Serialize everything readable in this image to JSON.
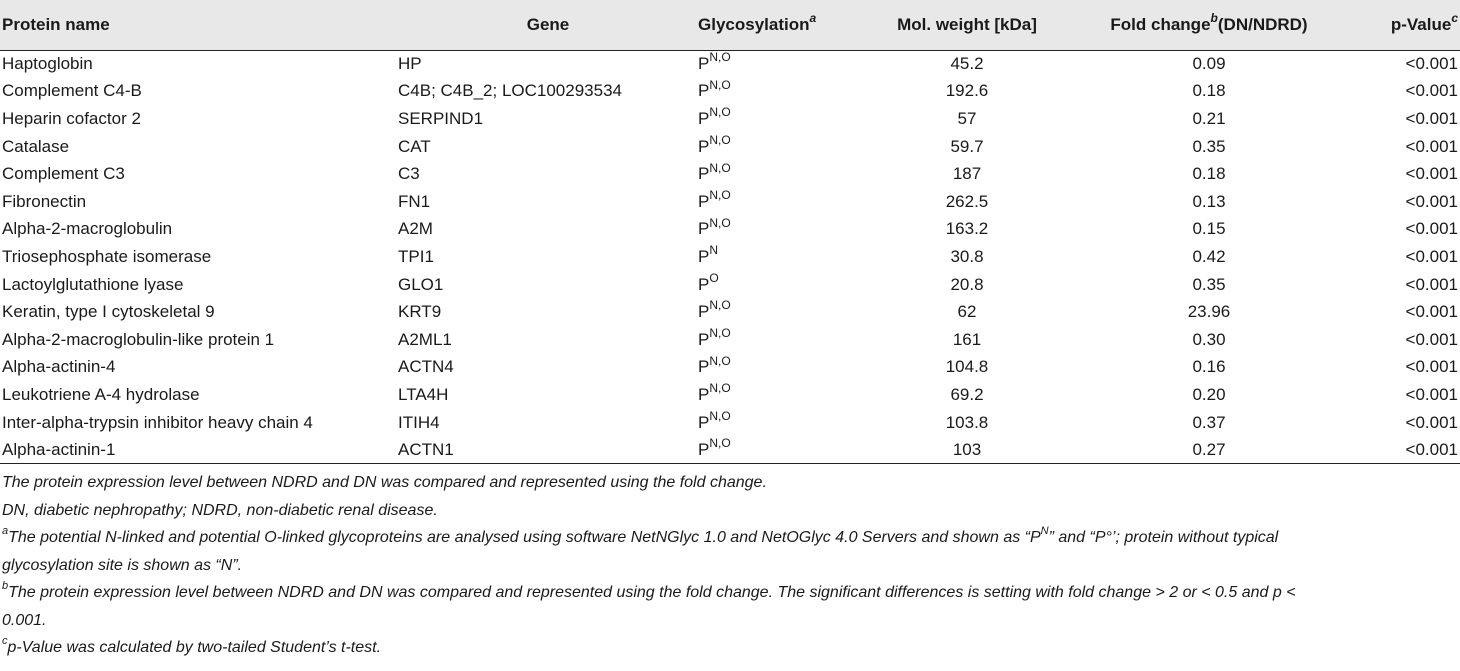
{
  "table": {
    "headers": {
      "protein": "Protein name",
      "gene": "Gene",
      "glyco": "Glycosylation",
      "glyco_sup": "a",
      "mw": "Mol. weight [kDa]",
      "fold_pre": "Fold change",
      "fold_sup": "b",
      "fold_post": "(DN/NDRD)",
      "p": "p-Value",
      "p_sup": "c"
    },
    "rows": [
      {
        "protein": "Haptoglobin",
        "gene": "HP",
        "glyco_base": "P",
        "glyco_sup": "N,O",
        "mw": "45.2",
        "fold": "0.09",
        "p": "<0.001"
      },
      {
        "protein": "Complement C4-B",
        "gene": "C4B; C4B_2; LOC100293534",
        "glyco_base": "P",
        "glyco_sup": "N,O",
        "mw": "192.6",
        "fold": "0.18",
        "p": "<0.001"
      },
      {
        "protein": "Heparin cofactor 2",
        "gene": "SERPIND1",
        "glyco_base": "P",
        "glyco_sup": "N,O",
        "mw": "57",
        "fold": "0.21",
        "p": "<0.001"
      },
      {
        "protein": "Catalase",
        "gene": "CAT",
        "glyco_base": "P",
        "glyco_sup": "N,O",
        "mw": "59.7",
        "fold": "0.35",
        "p": "<0.001"
      },
      {
        "protein": "Complement C3",
        "gene": "C3",
        "glyco_base": "P",
        "glyco_sup": "N,O",
        "mw": "187",
        "fold": "0.18",
        "p": "<0.001"
      },
      {
        "protein": "Fibronectin",
        "gene": "FN1",
        "glyco_base": "P",
        "glyco_sup": "N,O",
        "mw": "262.5",
        "fold": "0.13",
        "p": "<0.001"
      },
      {
        "protein": "Alpha-2-macroglobulin",
        "gene": "A2M",
        "glyco_base": "P",
        "glyco_sup": "N,O",
        "mw": "163.2",
        "fold": "0.15",
        "p": "<0.001"
      },
      {
        "protein": "Triosephosphate isomerase",
        "gene": "TPI1",
        "glyco_base": "P",
        "glyco_sup": "N",
        "mw": "30.8",
        "fold": "0.42",
        "p": "<0.001"
      },
      {
        "protein": "Lactoylglutathione lyase",
        "gene": "GLO1",
        "glyco_base": "P",
        "glyco_sup": "O",
        "mw": "20.8",
        "fold": "0.35",
        "p": "<0.001"
      },
      {
        "protein": "Keratin, type I cytoskeletal 9",
        "gene": "KRT9",
        "glyco_base": "P",
        "glyco_sup": "N,O",
        "mw": "62",
        "fold": "23.96",
        "p": "<0.001"
      },
      {
        "protein": "Alpha-2-macroglobulin-like protein 1",
        "gene": "A2ML1",
        "glyco_base": "P",
        "glyco_sup": "N,O",
        "mw": "161",
        "fold": "0.30",
        "p": "<0.001"
      },
      {
        "protein": "Alpha-actinin-4",
        "gene": "ACTN4",
        "glyco_base": "P",
        "glyco_sup": "N,O",
        "mw": "104.8",
        "fold": "0.16",
        "p": "<0.001"
      },
      {
        "protein": "Leukotriene A-4 hydrolase",
        "gene": "LTA4H",
        "glyco_base": "P",
        "glyco_sup": "N,O",
        "mw": "69.2",
        "fold": "0.20",
        "p": "<0.001"
      },
      {
        "protein": "Inter-alpha-trypsin inhibitor heavy chain 4",
        "gene": "ITIH4",
        "glyco_base": "P",
        "glyco_sup": "N,O",
        "mw": "103.8",
        "fold": "0.37",
        "p": "<0.001"
      },
      {
        "protein": "Alpha-actinin-1",
        "gene": "ACTN1",
        "glyco_base": "P",
        "glyco_sup": "N,O",
        "mw": "103",
        "fold": "0.27",
        "p": "<0.001"
      }
    ]
  },
  "footnotes": {
    "line1": "The protein expression level between NDRD and DN was compared and represented using the fold change.",
    "line2": "DN, diabetic nephropathy; NDRD, non-diabetic renal disease.",
    "a_marker": "a",
    "a_text_1": "The potential N-linked and potential O-linked glycoproteins are analysed using software NetNGlyc 1.0 and NetOGlyc 4.0 Servers and shown as “P",
    "a_sup": "N",
    "a_text_2": "” and “P°’; protein without typical",
    "a_text_3": "glycosylation site is shown as “N”.",
    "b_marker": "b",
    "b_text_1": "The protein expression level between NDRD and DN was compared and represented using the fold change. The significant differences is setting with fold change > 2 or < 0.5 and p <",
    "b_text_2": "0.001.",
    "c_marker": "c",
    "c_text": "p-Value was calculated by two-tailed Student’s t-test."
  }
}
